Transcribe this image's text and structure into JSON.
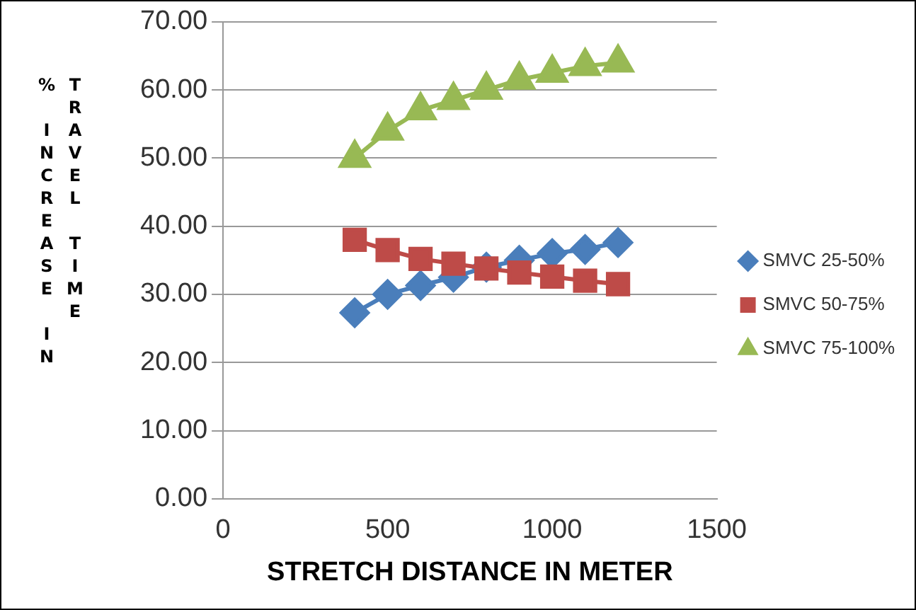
{
  "chart_data": {
    "type": "line",
    "xlabel": "STRETCH DISTANCE IN METER",
    "ylabel": "% INCREASE IN TRAVEL TIME",
    "x": [
      400,
      500,
      600,
      700,
      800,
      900,
      1000,
      1100,
      1200
    ],
    "series": [
      {
        "name": "SMVC 25-50%",
        "color": "#4a7ebb",
        "marker": "diamond",
        "values": [
          27.3,
          30,
          31.3,
          32.5,
          34,
          35,
          36,
          36.6,
          37.6
        ]
      },
      {
        "name": "SMVC 50-75%",
        "color": "#be4b48",
        "marker": "square",
        "values": [
          38,
          36.5,
          35.2,
          34.5,
          33.8,
          33.2,
          32.6,
          32,
          31.5
        ]
      },
      {
        "name": "SMVC 75-100%",
        "color": "#98b954",
        "marker": "triangle",
        "values": [
          50,
          54,
          57,
          58.5,
          60,
          61.5,
          62.5,
          63.5,
          64
        ]
      }
    ],
    "xlim": [
      0,
      1500
    ],
    "xticks": [
      0,
      500,
      1000,
      1500
    ],
    "ylim": [
      0,
      70
    ],
    "yticks": [
      {
        "value": 0,
        "label": "0.00"
      },
      {
        "value": 10,
        "label": "10.00"
      },
      {
        "value": 20,
        "label": "20.00"
      },
      {
        "value": 30,
        "label": "30.00"
      },
      {
        "value": 40,
        "label": "40.00"
      },
      {
        "value": 50,
        "label": "50.00"
      },
      {
        "value": 60,
        "label": "60.00"
      },
      {
        "value": 70,
        "label": "70.00"
      }
    ],
    "grid": "y",
    "legend": "right",
    "line_style": "solid"
  }
}
